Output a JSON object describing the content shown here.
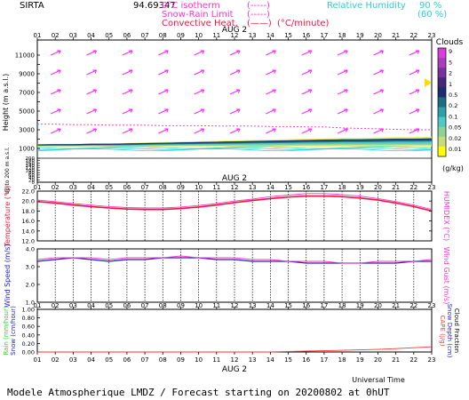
{
  "header": {
    "site": "SIRTA",
    "coords": "94.69347",
    "isotherm_label": "0°C isotherm",
    "isotherm_sym": "(-----)",
    "snow_rain_label": "Snow-Rain Limit",
    "snow_rain_sym": "(-----)",
    "convective_label": "Convective Heat.",
    "convective_sym": "(——)",
    "convective_unit": "(°C/minute)",
    "rh_label": "Relative Humidity",
    "rh_90": "90 %",
    "rh_60": "(60 %)"
  },
  "footer": {
    "universal_time": "Universal Time",
    "forecast": "Modele Atmospherique LMDZ / Forecast starting on 20200802 at 0hUT"
  },
  "colors": {
    "temperature": "#e8193f",
    "humidex": "#ff33cc",
    "wind": "#2222cc",
    "wind_arrow": "#ff22ff",
    "rain": "#33cc33",
    "cape": "#ff3333",
    "cloud_scale": [
      "#ffff00",
      "#c8dc78",
      "#8cd296",
      "#50c8c8",
      "#2ea0aa",
      "#1e6e82",
      "#1e2d6e",
      "#462878",
      "#7832a0",
      "#aa3cbe",
      "#dc3cdc"
    ]
  },
  "chart_data": [
    {
      "type": "heatmap",
      "title": "Clouds",
      "ylabel": "Height (m a.s.l.)",
      "ylabel_lower": "Up to 200 m a.s.l.",
      "date_label": "AUG 2",
      "hours": [
        "01",
        "02",
        "03",
        "04",
        "05",
        "06",
        "07",
        "08",
        "09",
        "10",
        "11",
        "12",
        "13",
        "14",
        "15",
        "16",
        "17",
        "18",
        "19",
        "20",
        "21",
        "22",
        "23"
      ],
      "y_ticks_upper": [
        "1000",
        "2000",
        "3000",
        "4000",
        "5000",
        "6000",
        "7000",
        "8000",
        "9000",
        "10000",
        "11000"
      ],
      "y_ticks_lower": [
        "0",
        "20",
        "40",
        "60",
        "80",
        "100",
        "120",
        "140",
        "160",
        "180",
        "200"
      ],
      "colorbar_ticks": [
        "0.01",
        "0.02",
        "0.05",
        "0.1",
        "0.2",
        "0.5",
        "1",
        "2",
        "5",
        "9"
      ],
      "colorbar_unit": "(g/kg)",
      "cloud_band": {
        "bottom_m": 1200,
        "top_m": [
          1400,
          1450,
          1450,
          1500,
          1500,
          1550,
          1600,
          1650,
          1700,
          1750,
          1800,
          1850,
          1900,
          1950,
          2000,
          2050,
          2100,
          2150,
          2150,
          2200,
          2250,
          2250,
          2300
        ]
      },
      "isotherm_0C_m": [
        3600,
        3600,
        3550,
        3550,
        3500,
        3500,
        3500,
        3450,
        3450,
        3450,
        3400,
        3400,
        3400,
        3350,
        3350,
        3300,
        3300,
        3200,
        3150,
        3100,
        3050,
        3000,
        3000
      ]
    },
    {
      "type": "line",
      "date_label": "AUG 2",
      "ylabel": "Temperature (°C)",
      "ylabel_right": "HUMIDEX (°C)",
      "ylim": [
        12.0,
        22.0
      ],
      "y_ticks": [
        "12.0",
        "14.0",
        "16.0",
        "18.0",
        "20.0",
        "22.0"
      ],
      "x": [
        "01",
        "02",
        "03",
        "04",
        "05",
        "06",
        "07",
        "08",
        "09",
        "10",
        "11",
        "12",
        "13",
        "14",
        "15",
        "16",
        "17",
        "18",
        "19",
        "20",
        "21",
        "22",
        "23"
      ],
      "series": [
        {
          "values": [
            19.9,
            19.6,
            19.2,
            18.9,
            18.6,
            18.4,
            18.3,
            18.3,
            18.5,
            18.8,
            19.2,
            19.7,
            20.1,
            20.5,
            20.8,
            21.0,
            21.0,
            20.9,
            20.6,
            20.2,
            19.6,
            18.9,
            18.0
          ]
        },
        {
          "values": [
            20.2,
            19.9,
            19.5,
            19.2,
            18.9,
            18.7,
            18.6,
            18.6,
            18.8,
            19.1,
            19.5,
            20.0,
            20.4,
            20.9,
            21.2,
            21.5,
            21.5,
            21.3,
            21.0,
            20.5,
            19.9,
            19.2,
            18.3
          ]
        }
      ]
    },
    {
      "type": "line",
      "ylabel": "Wind Speed (m/s)",
      "ylabel_right": "Wind Gust (m/s)",
      "ylim": [
        1.0,
        4.0
      ],
      "y_ticks": [
        "1.0",
        "2.0",
        "3.0",
        "4.0"
      ],
      "x": [
        "01",
        "02",
        "03",
        "04",
        "05",
        "06",
        "07",
        "08",
        "09",
        "10",
        "11",
        "12",
        "13",
        "14",
        "15",
        "16",
        "17",
        "18",
        "19",
        "20",
        "21",
        "22",
        "23"
      ],
      "series": [
        {
          "values": [
            3.3,
            3.4,
            3.5,
            3.4,
            3.3,
            3.4,
            3.4,
            3.5,
            3.5,
            3.5,
            3.4,
            3.4,
            3.3,
            3.3,
            3.3,
            3.2,
            3.2,
            3.2,
            3.2,
            3.2,
            3.2,
            3.3,
            3.3
          ]
        },
        {
          "values": [
            3.4,
            3.5,
            3.5,
            3.5,
            3.4,
            3.5,
            3.5,
            3.5,
            3.6,
            3.5,
            3.5,
            3.5,
            3.4,
            3.4,
            3.3,
            3.3,
            3.3,
            3.2,
            3.2,
            3.3,
            3.3,
            3.3,
            3.4
          ]
        }
      ]
    },
    {
      "type": "line",
      "date_label": "AUG 2",
      "ylabel": "Rain (mm/hour)",
      "ylabel_snow": "Snow (cm/hour)",
      "ylabel_right": "CAPE (J/g)",
      "ylabel_right2": "Snow Depth (cm)",
      "ylabel_right3": "Cloud Fraction",
      "ylim": [
        0.0,
        1.0
      ],
      "y_ticks": [
        "0.00",
        "0.20",
        "0.40",
        "0.60",
        "0.80",
        "1.00"
      ],
      "x": [
        "01",
        "02",
        "03",
        "04",
        "05",
        "06",
        "07",
        "08",
        "09",
        "10",
        "11",
        "12",
        "13",
        "14",
        "15",
        "16",
        "17",
        "18",
        "19",
        "20",
        "21",
        "22",
        "23"
      ],
      "series": [
        {
          "values": [
            0,
            0,
            0,
            0,
            0,
            0,
            0,
            0,
            0,
            0,
            0,
            0,
            0,
            0,
            0.01,
            0.02,
            0.03,
            0.04,
            0.05,
            0.06,
            0.08,
            0.1,
            0.12
          ]
        }
      ]
    }
  ]
}
